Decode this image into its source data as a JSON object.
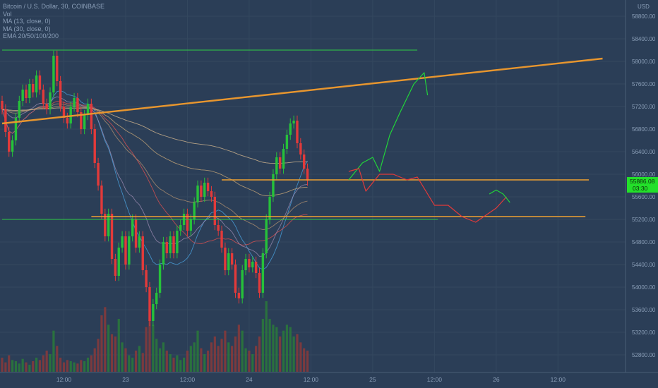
{
  "legend": {
    "symbol": "Bitcoin / U.S. Dollar, 30, COINBASE",
    "vol": "Vol",
    "ma1": "MA (13, close, 0)",
    "ma2": "MA (30, close, 0)",
    "ema": "EMA 20/50/100/200"
  },
  "colors": {
    "background": "#2b3e57",
    "up": "#26c13a",
    "down": "#e23a3a",
    "trendline": "#e8962e",
    "support": "#f0a030",
    "green_line": "#2fcf45",
    "price_badge": "#23e02a"
  },
  "chart_data": {
    "type": "candlestick",
    "title": "Bitcoin / U.S. Dollar, 30, COINBASE",
    "currency_label": "USD",
    "y_ticks": [
      58800,
      58400,
      58000,
      57600,
      57200,
      56800,
      56400,
      56000,
      55600,
      55200,
      54800,
      54400,
      54000,
      53600,
      53200,
      52800
    ],
    "ylim": [
      52400,
      59000
    ],
    "x_tick_labels": [
      "12:00",
      "23",
      "12:00",
      "24",
      "12:00",
      "25",
      "12:00",
      "26",
      "12:00"
    ],
    "x_tick_index": [
      18,
      36,
      54,
      72,
      90,
      108,
      126,
      144,
      162
    ],
    "current_price": "55886.08",
    "countdown": "03:30",
    "candles": [
      [
        57300,
        57150
      ],
      [
        57150,
        56750
      ],
      [
        56750,
        56400
      ],
      [
        56400,
        56600
      ],
      [
        56600,
        57000
      ],
      [
        57000,
        57300
      ],
      [
        57300,
        57500
      ],
      [
        57500,
        57350
      ],
      [
        57350,
        57600
      ],
      [
        57600,
        57450
      ],
      [
        57450,
        57750
      ],
      [
        57750,
        57500
      ],
      [
        57500,
        57250
      ],
      [
        57250,
        57150
      ],
      [
        57150,
        57450
      ],
      [
        57450,
        58100
      ],
      [
        58100,
        57650
      ],
      [
        57650,
        57200
      ],
      [
        57200,
        57000
      ],
      [
        57000,
        56900
      ],
      [
        56900,
        57200
      ],
      [
        57200,
        57350
      ],
      [
        57350,
        57100
      ],
      [
        57100,
        56800
      ],
      [
        56800,
        57050
      ],
      [
        57050,
        57250
      ],
      [
        57250,
        56800
      ],
      [
        56800,
        56200
      ],
      [
        56200,
        55800
      ],
      [
        55800,
        55300
      ],
      [
        55300,
        54900
      ],
      [
        54900,
        55300
      ],
      [
        55300,
        54500
      ],
      [
        54500,
        54200
      ],
      [
        54200,
        54700
      ],
      [
        54700,
        54900
      ],
      [
        54900,
        54400
      ],
      [
        54400,
        54900
      ],
      [
        54900,
        55200
      ],
      [
        55200,
        54700
      ],
      [
        54700,
        54900
      ],
      [
        54900,
        54300
      ],
      [
        54300,
        54000
      ],
      [
        54000,
        53400
      ],
      [
        53400,
        53700
      ],
      [
        53700,
        53900
      ],
      [
        53900,
        54400
      ],
      [
        54400,
        54800
      ],
      [
        54800,
        54600
      ],
      [
        54600,
        54900
      ],
      [
        54900,
        54600
      ],
      [
        54600,
        55000
      ],
      [
        55000,
        55100
      ],
      [
        55100,
        55300
      ],
      [
        55300,
        55000
      ],
      [
        55000,
        55200
      ],
      [
        55200,
        55500
      ],
      [
        55500,
        55800
      ],
      [
        55800,
        55600
      ],
      [
        55600,
        55850
      ],
      [
        55850,
        55700
      ],
      [
        55700,
        55600
      ],
      [
        55600,
        55100
      ],
      [
        55100,
        55000
      ],
      [
        55000,
        54700
      ],
      [
        54700,
        54300
      ],
      [
        54300,
        54600
      ],
      [
        54600,
        54400
      ],
      [
        54400,
        53900
      ],
      [
        53900,
        53800
      ],
      [
        53800,
        54300
      ],
      [
        54300,
        54500
      ],
      [
        54500,
        54350
      ],
      [
        54350,
        54450
      ],
      [
        54450,
        54250
      ],
      [
        54250,
        53900
      ],
      [
        53900,
        54600
      ],
      [
        54600,
        55200
      ],
      [
        55200,
        55600
      ],
      [
        55600,
        56000
      ],
      [
        56000,
        56300
      ],
      [
        56300,
        56100
      ],
      [
        56100,
        56450
      ],
      [
        56450,
        56700
      ],
      [
        56700,
        56900
      ],
      [
        56900,
        56950
      ],
      [
        56950,
        56550
      ],
      [
        56550,
        56350
      ],
      [
        56350,
        56100
      ],
      [
        56100,
        55886
      ]
    ],
    "volume": [
      12,
      8,
      14,
      10,
      9,
      7,
      11,
      8,
      6,
      9,
      12,
      10,
      14,
      18,
      15,
      35,
      22,
      12,
      8,
      10,
      9,
      8,
      7,
      10,
      9,
      12,
      14,
      20,
      28,
      48,
      55,
      40,
      32,
      30,
      45,
      25,
      20,
      14,
      12,
      18,
      22,
      16,
      38,
      52,
      40,
      28,
      20,
      25,
      18,
      15,
      12,
      14,
      10,
      12,
      18,
      22,
      25,
      35,
      20,
      15,
      18,
      25,
      30,
      22,
      28,
      35,
      25,
      22,
      30,
      40,
      35,
      20,
      18,
      15,
      22,
      30,
      45,
      60,
      45,
      40,
      38,
      30,
      35,
      40,
      38,
      30,
      32,
      25,
      20,
      18
    ],
    "annotation_lines": [
      {
        "label": "rising trendline",
        "from": [
          0,
          56900
        ],
        "to": [
          175,
          58050
        ]
      },
      {
        "label": "resistance level",
        "from": [
          64,
          55900
        ],
        "to": [
          171,
          55900
        ]
      },
      {
        "label": "support level",
        "from": [
          26,
          55250
        ],
        "to": [
          170,
          55250
        ]
      },
      {
        "label": "top green line",
        "from": [
          0,
          58200
        ],
        "to": [
          121,
          58200
        ]
      },
      {
        "label": "lower green line",
        "from": [
          0,
          55200
        ],
        "to": [
          127,
          55200
        ]
      }
    ],
    "forecast_paths": [
      {
        "label": "bullish scenario",
        "points": [
          [
            101,
            55900
          ],
          [
            105,
            56200
          ],
          [
            108,
            56300
          ],
          [
            110,
            56050
          ],
          [
            113,
            56700
          ],
          [
            116,
            57100
          ],
          [
            118,
            57350
          ],
          [
            120,
            57600
          ],
          [
            123,
            57800
          ],
          [
            124,
            57400
          ]
        ]
      },
      {
        "label": "bearish scenario",
        "points": [
          [
            101,
            56050
          ],
          [
            104,
            56100
          ],
          [
            106,
            55700
          ],
          [
            110,
            56000
          ],
          [
            114,
            56000
          ],
          [
            118,
            55900
          ],
          [
            121,
            55950
          ],
          [
            126,
            55450
          ],
          [
            130,
            55450
          ],
          [
            134,
            55250
          ],
          [
            138,
            55150
          ],
          [
            144,
            55400
          ],
          [
            147,
            55600
          ]
        ]
      },
      {
        "label": "rebound scenario",
        "points": [
          [
            142,
            55650
          ],
          [
            144,
            55720
          ],
          [
            146,
            55650
          ],
          [
            148,
            55500
          ]
        ]
      }
    ]
  }
}
